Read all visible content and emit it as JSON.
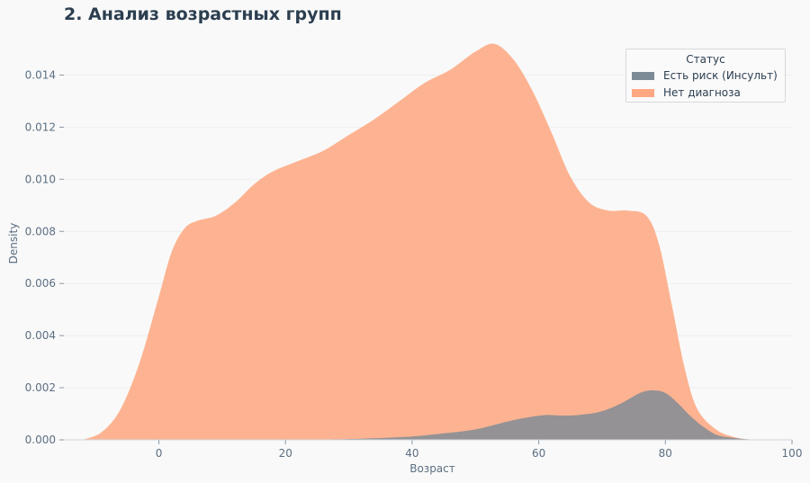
{
  "title": "2. Анализ возрастных групп",
  "chart_data": {
    "type": "area",
    "xlabel": "Возраст",
    "ylabel": "Density",
    "xlim": [
      -15,
      100
    ],
    "ylim": [
      0,
      0.0155
    ],
    "xticks": [
      0,
      20,
      40,
      60,
      80,
      100
    ],
    "xtick_labels": [
      "0",
      "20",
      "40",
      "60",
      "80",
      "100"
    ],
    "yticks": [
      0,
      0.002,
      0.004,
      0.006,
      0.008,
      0.01,
      0.012,
      0.014
    ],
    "ytick_labels": [
      "0.000",
      "0.002",
      "0.004",
      "0.006",
      "0.008",
      "0.010",
      "0.012",
      "0.014"
    ],
    "grid": true,
    "legend": {
      "title": "Статус",
      "placement": "top-right"
    },
    "series": [
      {
        "name": "Нет диагноза",
        "color": "#fda882",
        "x": [
          -12,
          -9,
          -6,
          -3,
          0,
          2,
          4,
          6,
          9,
          12,
          15,
          18,
          22,
          26,
          30,
          34,
          38,
          42,
          46,
          50,
          53,
          56,
          59,
          62,
          65,
          68,
          71,
          74,
          77,
          79,
          81,
          83,
          85,
          88,
          91,
          94
        ],
        "y": [
          0.0,
          0.0003,
          0.0012,
          0.003,
          0.0055,
          0.0072,
          0.0081,
          0.0084,
          0.0086,
          0.0091,
          0.0098,
          0.0103,
          0.0107,
          0.0111,
          0.0117,
          0.0123,
          0.013,
          0.0137,
          0.0142,
          0.0149,
          0.0152,
          0.0146,
          0.0134,
          0.0118,
          0.0101,
          0.0091,
          0.0088,
          0.0088,
          0.0086,
          0.0075,
          0.0052,
          0.0028,
          0.0012,
          0.0004,
          0.0001,
          0.0
        ]
      },
      {
        "name": "Есть риск (Инсульт)",
        "color": "#7d8b96",
        "x": [
          20,
          28,
          34,
          40,
          45,
          50,
          55,
          58,
          61,
          64,
          67,
          70,
          73,
          76,
          78,
          80,
          82,
          84,
          86,
          88,
          90,
          93,
          96
        ],
        "y": [
          0.0,
          2e-05,
          6e-05,
          0.00013,
          0.00025,
          0.0004,
          0.0007,
          0.00085,
          0.00095,
          0.00093,
          0.00097,
          0.0011,
          0.0014,
          0.0018,
          0.0019,
          0.0018,
          0.0014,
          0.0009,
          0.0005,
          0.0002,
          0.0001,
          2e-05,
          0.0
        ]
      }
    ]
  }
}
